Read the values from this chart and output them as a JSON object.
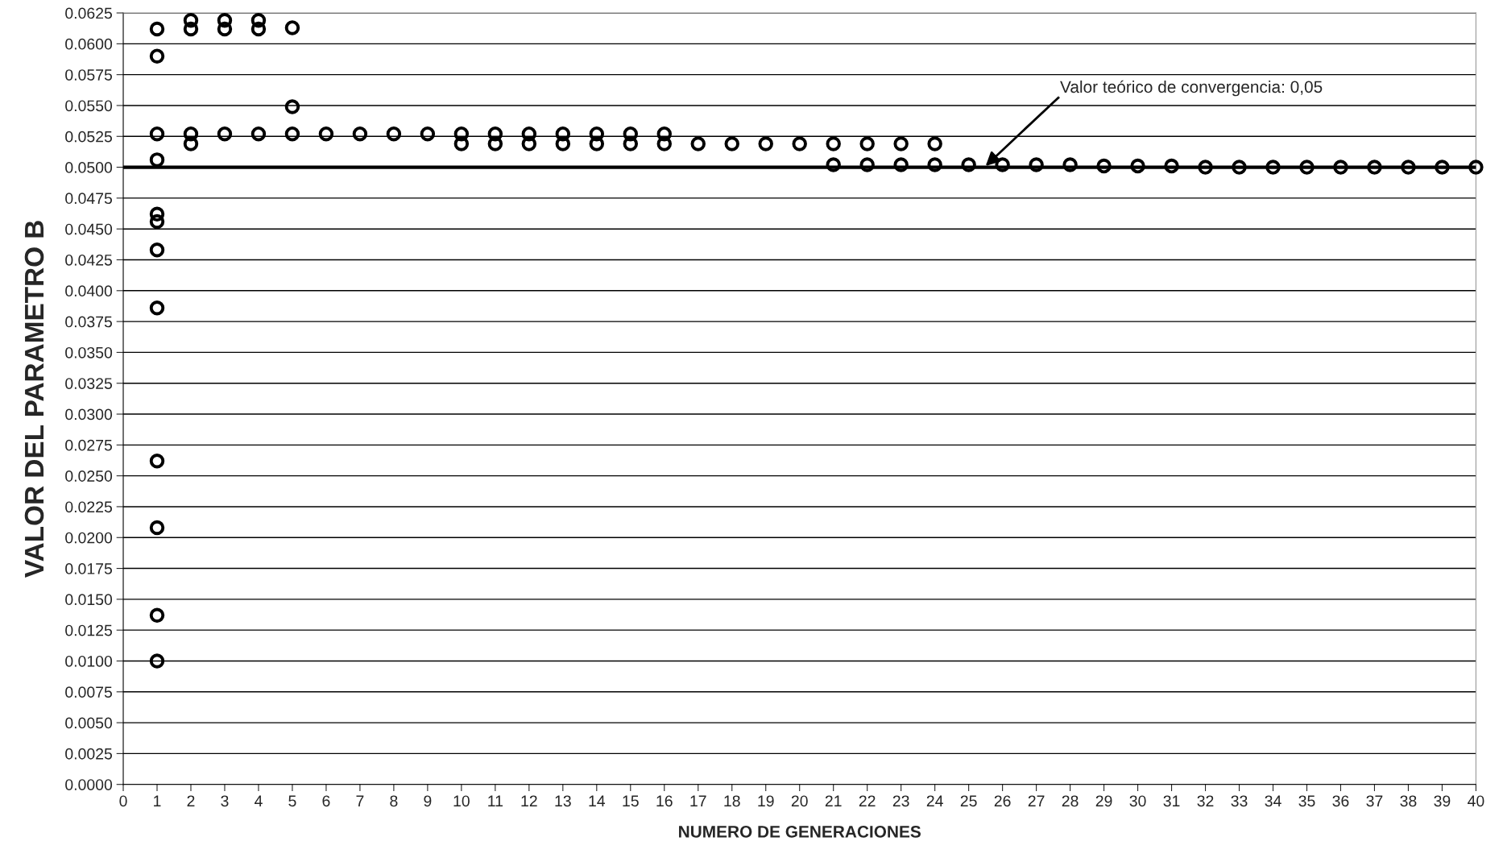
{
  "chart_data": {
    "type": "scatter",
    "xlabel": "NUMERO DE GENERACIONES",
    "ylabel": "VALOR DEL PARAMETRO B",
    "x": [
      1,
      1,
      1,
      1,
      1,
      1,
      1,
      1,
      1,
      1,
      1,
      1,
      2,
      2,
      2,
      2,
      3,
      3,
      3,
      4,
      4,
      4,
      5,
      5,
      5,
      6,
      7,
      8,
      9,
      10,
      10,
      11,
      11,
      12,
      12,
      13,
      13,
      14,
      14,
      15,
      15,
      16,
      16,
      17,
      18,
      19,
      20,
      21,
      21,
      22,
      22,
      23,
      23,
      24,
      24,
      25,
      26,
      27,
      28,
      29,
      30,
      31,
      32,
      33,
      34,
      35,
      36,
      37,
      38,
      39,
      40
    ],
    "series": [
      {
        "color": "#000000",
        "values": [
          0.0612,
          0.059,
          0.0527,
          0.0506,
          0.0462,
          0.0456,
          0.0433,
          0.0386,
          0.0262,
          0.0208,
          0.0137,
          0.01,
          0.0619,
          0.0612,
          0.0527,
          0.0519,
          0.0619,
          0.0612,
          0.0527,
          0.0619,
          0.0612,
          0.0527,
          0.0613,
          0.0549,
          0.0527,
          0.0527,
          0.0527,
          0.0527,
          0.0527,
          0.0527,
          0.0519,
          0.0527,
          0.0519,
          0.0527,
          0.0519,
          0.0527,
          0.0519,
          0.0527,
          0.0519,
          0.0527,
          0.0519,
          0.0527,
          0.0519,
          0.0519,
          0.0519,
          0.0519,
          0.0519,
          0.0519,
          0.0502,
          0.0519,
          0.0502,
          0.0519,
          0.0502,
          0.0519,
          0.0502,
          0.0502,
          0.0502,
          0.0502,
          0.0502,
          0.0501,
          0.0501,
          0.0501,
          0.05,
          0.05,
          0.05,
          0.05,
          0.05,
          0.05,
          0.05,
          0.05,
          0.05
        ]
      }
    ],
    "xlim": [
      0,
      40
    ],
    "xticks": [
      0,
      1,
      2,
      3,
      4,
      5,
      6,
      7,
      8,
      9,
      10,
      11,
      12,
      13,
      14,
      15,
      16,
      17,
      18,
      19,
      20,
      21,
      22,
      23,
      24,
      25,
      26,
      27,
      28,
      29,
      30,
      31,
      32,
      33,
      34,
      35,
      36,
      37,
      38,
      39,
      40
    ],
    "ylim": [
      0,
      0.0625
    ],
    "yticks": [
      {
        "value": 0,
        "label": "0.0000"
      },
      {
        "value": 0.0025,
        "label": "0.0025"
      },
      {
        "value": 0.005,
        "label": "0.0050"
      },
      {
        "value": 0.0075,
        "label": "0.0075"
      },
      {
        "value": 0.01,
        "label": "0.0100"
      },
      {
        "value": 0.0125,
        "label": "0.0125"
      },
      {
        "value": 0.015,
        "label": "0.0150"
      },
      {
        "value": 0.0175,
        "label": "0.0175"
      },
      {
        "value": 0.02,
        "label": "0.0200"
      },
      {
        "value": 0.0225,
        "label": "0.0225"
      },
      {
        "value": 0.025,
        "label": "0.0250"
      },
      {
        "value": 0.0275,
        "label": "0.0275"
      },
      {
        "value": 0.03,
        "label": "0.0300"
      },
      {
        "value": 0.0325,
        "label": "0.0325"
      },
      {
        "value": 0.035,
        "label": "0.0350"
      },
      {
        "value": 0.0375,
        "label": "0.0375"
      },
      {
        "value": 0.04,
        "label": "0.0400"
      },
      {
        "value": 0.0425,
        "label": "0.0425"
      },
      {
        "value": 0.045,
        "label": "0.0450"
      },
      {
        "value": 0.0475,
        "label": "0.0475"
      },
      {
        "value": 0.05,
        "label": "0.0500"
      },
      {
        "value": 0.0525,
        "label": "0.0525"
      },
      {
        "value": 0.055,
        "label": "0.0550"
      },
      {
        "value": 0.0575,
        "label": "0.0575"
      },
      {
        "value": 0.06,
        "label": "0.0600"
      },
      {
        "value": 0.0625,
        "label": "0.0625"
      }
    ],
    "ref_lines": [
      {
        "axis": "y",
        "value": 0.05,
        "color": "#000000"
      }
    ],
    "annotations": [
      {
        "text": "Valor teórico de convergencia: 0,05",
        "x": 25.5,
        "y": 0.0501
      }
    ],
    "grid": "y",
    "marker": "circle"
  }
}
